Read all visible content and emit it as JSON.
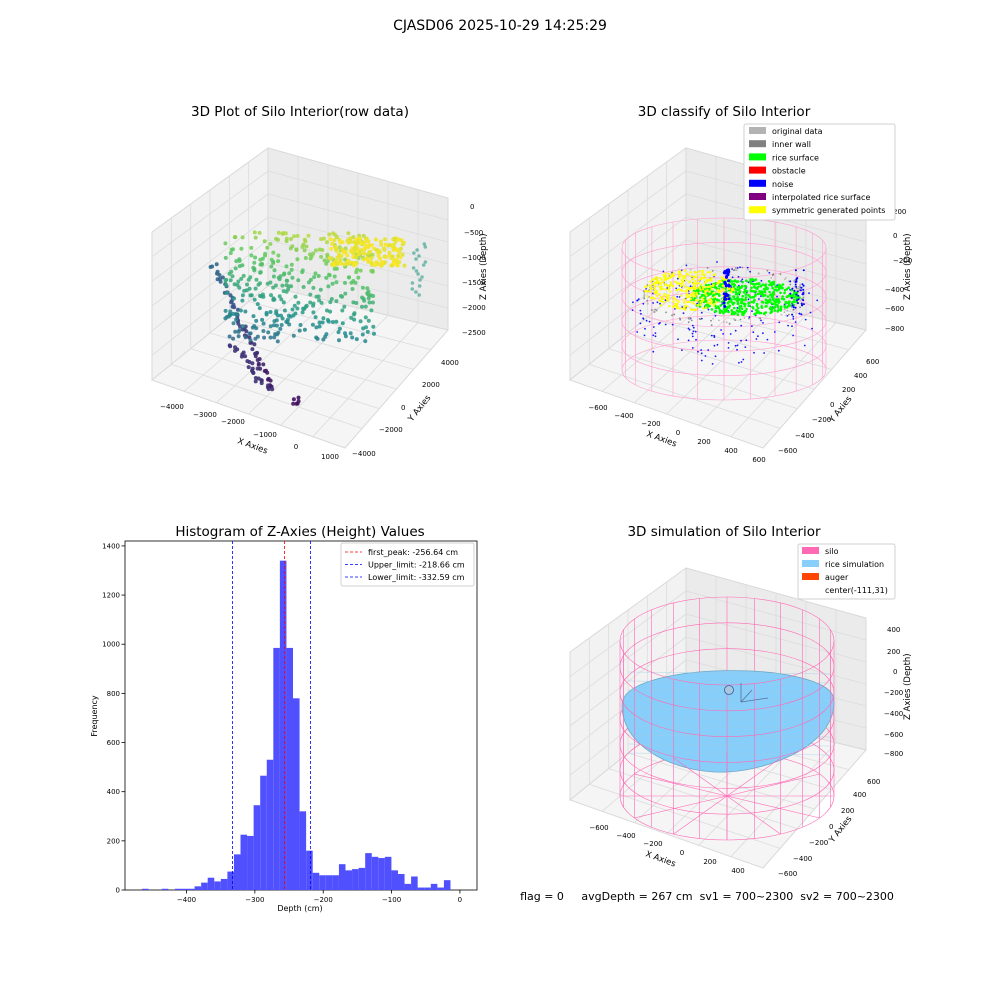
{
  "figure": {
    "suptitle": "CJASD06 2025-10-29 14:25:29",
    "status_text": "flag = 0     avgDepth = 267 cm  sv1 = 700~2300  sv2 = 700~2300"
  },
  "chart_data": [
    {
      "type": "scatter3d",
      "title": "3D Plot of Silo Interior(row data)",
      "xlabel": "X Axies",
      "ylabel": "Y Axies",
      "zlabel": "Z Axies (Depth)",
      "xticks": [
        "−4000",
        "−3000",
        "−2000",
        "−1000",
        "0",
        "1000"
      ],
      "yticks": [
        "−4000",
        "−2000",
        "0",
        "2000",
        "4000"
      ],
      "zticks": [
        "0",
        "−500",
        "−1000",
        "−1500",
        "−2000",
        "−2500"
      ],
      "colormap": "viridis"
    },
    {
      "type": "scatter3d",
      "title": "3D classify of Silo Interior",
      "xlabel": "X Axies",
      "ylabel": "Y Axies",
      "zlabel": "Z Axies (Depth)",
      "xticks": [
        "−600",
        "−400",
        "−200",
        "0",
        "200",
        "400",
        "600"
      ],
      "yticks": [
        "−600",
        "−400",
        "−200",
        "0",
        "200",
        "400",
        "600"
      ],
      "zticks": [
        "200",
        "0",
        "−200",
        "−400",
        "−600",
        "−800"
      ],
      "legend_position": "top-right",
      "legend": [
        {
          "label": "original data",
          "color": "#b3b3b3"
        },
        {
          "label": "inner wall",
          "color": "#808080"
        },
        {
          "label": "rice surface",
          "color": "#00ff00"
        },
        {
          "label": "obstacle",
          "color": "#ff0000"
        },
        {
          "label": "noise",
          "color": "#0000ff"
        },
        {
          "label": "interpolated rice surface",
          "color": "#800080"
        },
        {
          "label": "symmetric generated points",
          "color": "#ffff00"
        }
      ]
    },
    {
      "type": "bar",
      "title": "Histogram of Z-Axies (Height) Values",
      "xlabel": "Depth (cm)",
      "ylabel": "Frequency",
      "bar_color": "#4d4dff",
      "xlim": [
        -490,
        25
      ],
      "ylim": [
        0,
        1420
      ],
      "xticks": [
        -400,
        -300,
        -200,
        -100,
        0
      ],
      "xtick_labels": [
        "−400",
        "−300",
        "−200",
        "−100",
        "0"
      ],
      "yticks": [
        0,
        200,
        400,
        600,
        800,
        1000,
        1200,
        1400
      ],
      "bin_width": 9.6,
      "bin_starts": [
        -465,
        -455.4,
        -445.8,
        -436.2,
        -426.6,
        -417,
        -407.4,
        -397.8,
        -388.2,
        -378.6,
        -369,
        -359.4,
        -349.8,
        -340.2,
        -330.6,
        -321,
        -311.4,
        -301.8,
        -292.2,
        -282.6,
        -273,
        -263.4,
        -253.8,
        -244.2,
        -234.6,
        -225,
        -215.4,
        -205.8,
        -196.2,
        -186.6,
        -177,
        -167.4,
        -157.8,
        -148.2,
        -138.6,
        -129,
        -119.4,
        -109.8,
        -100.2,
        -90.6,
        -81,
        -71.4,
        -61.8,
        -52.2,
        -42.6,
        -33,
        -23.4,
        -13.8,
        -4.2
      ],
      "counts": [
        5,
        0,
        0,
        5,
        0,
        5,
        5,
        5,
        15,
        30,
        50,
        35,
        45,
        75,
        145,
        225,
        220,
        345,
        465,
        530,
        985,
        1340,
        985,
        780,
        320,
        160,
        70,
        60,
        60,
        60,
        105,
        80,
        85,
        90,
        150,
        135,
        130,
        135,
        80,
        65,
        25,
        55,
        10,
        10,
        25,
        10,
        40,
        0,
        0
      ],
      "vlines": [
        {
          "label": "first_peak: -256.64 cm",
          "x": -256.64,
          "color": "#ff0000"
        },
        {
          "label": "Upper_limit: -218.66 cm",
          "x": -218.66,
          "color": "#0000ff"
        },
        {
          "label": "Lower_limit: -332.59 cm",
          "x": -332.59,
          "color": "#0000ff"
        }
      ],
      "legend_position": "top-right"
    },
    {
      "type": "surface3d",
      "title": "3D simulation of Silo Interior",
      "xlabel": "X Axies",
      "ylabel": "Y Axies",
      "zlabel": "Z Axies (Depth)",
      "xticks": [
        "−600",
        "−400",
        "−200",
        "0",
        "200",
        "400"
      ],
      "yticks": [
        "−600",
        "−400",
        "−200",
        "0",
        "200",
        "400",
        "600"
      ],
      "zticks": [
        "400",
        "200",
        "0",
        "−200",
        "−400",
        "−600",
        "−800"
      ],
      "legend_position": "top-right",
      "legend": [
        {
          "label": "silo",
          "color": "#ff69b4"
        },
        {
          "label": "rice simulation",
          "color": "#87cefa"
        },
        {
          "label": "auger",
          "color": "#ff4500"
        },
        {
          "label": "center(-111,31)",
          "color": ""
        }
      ]
    }
  ]
}
